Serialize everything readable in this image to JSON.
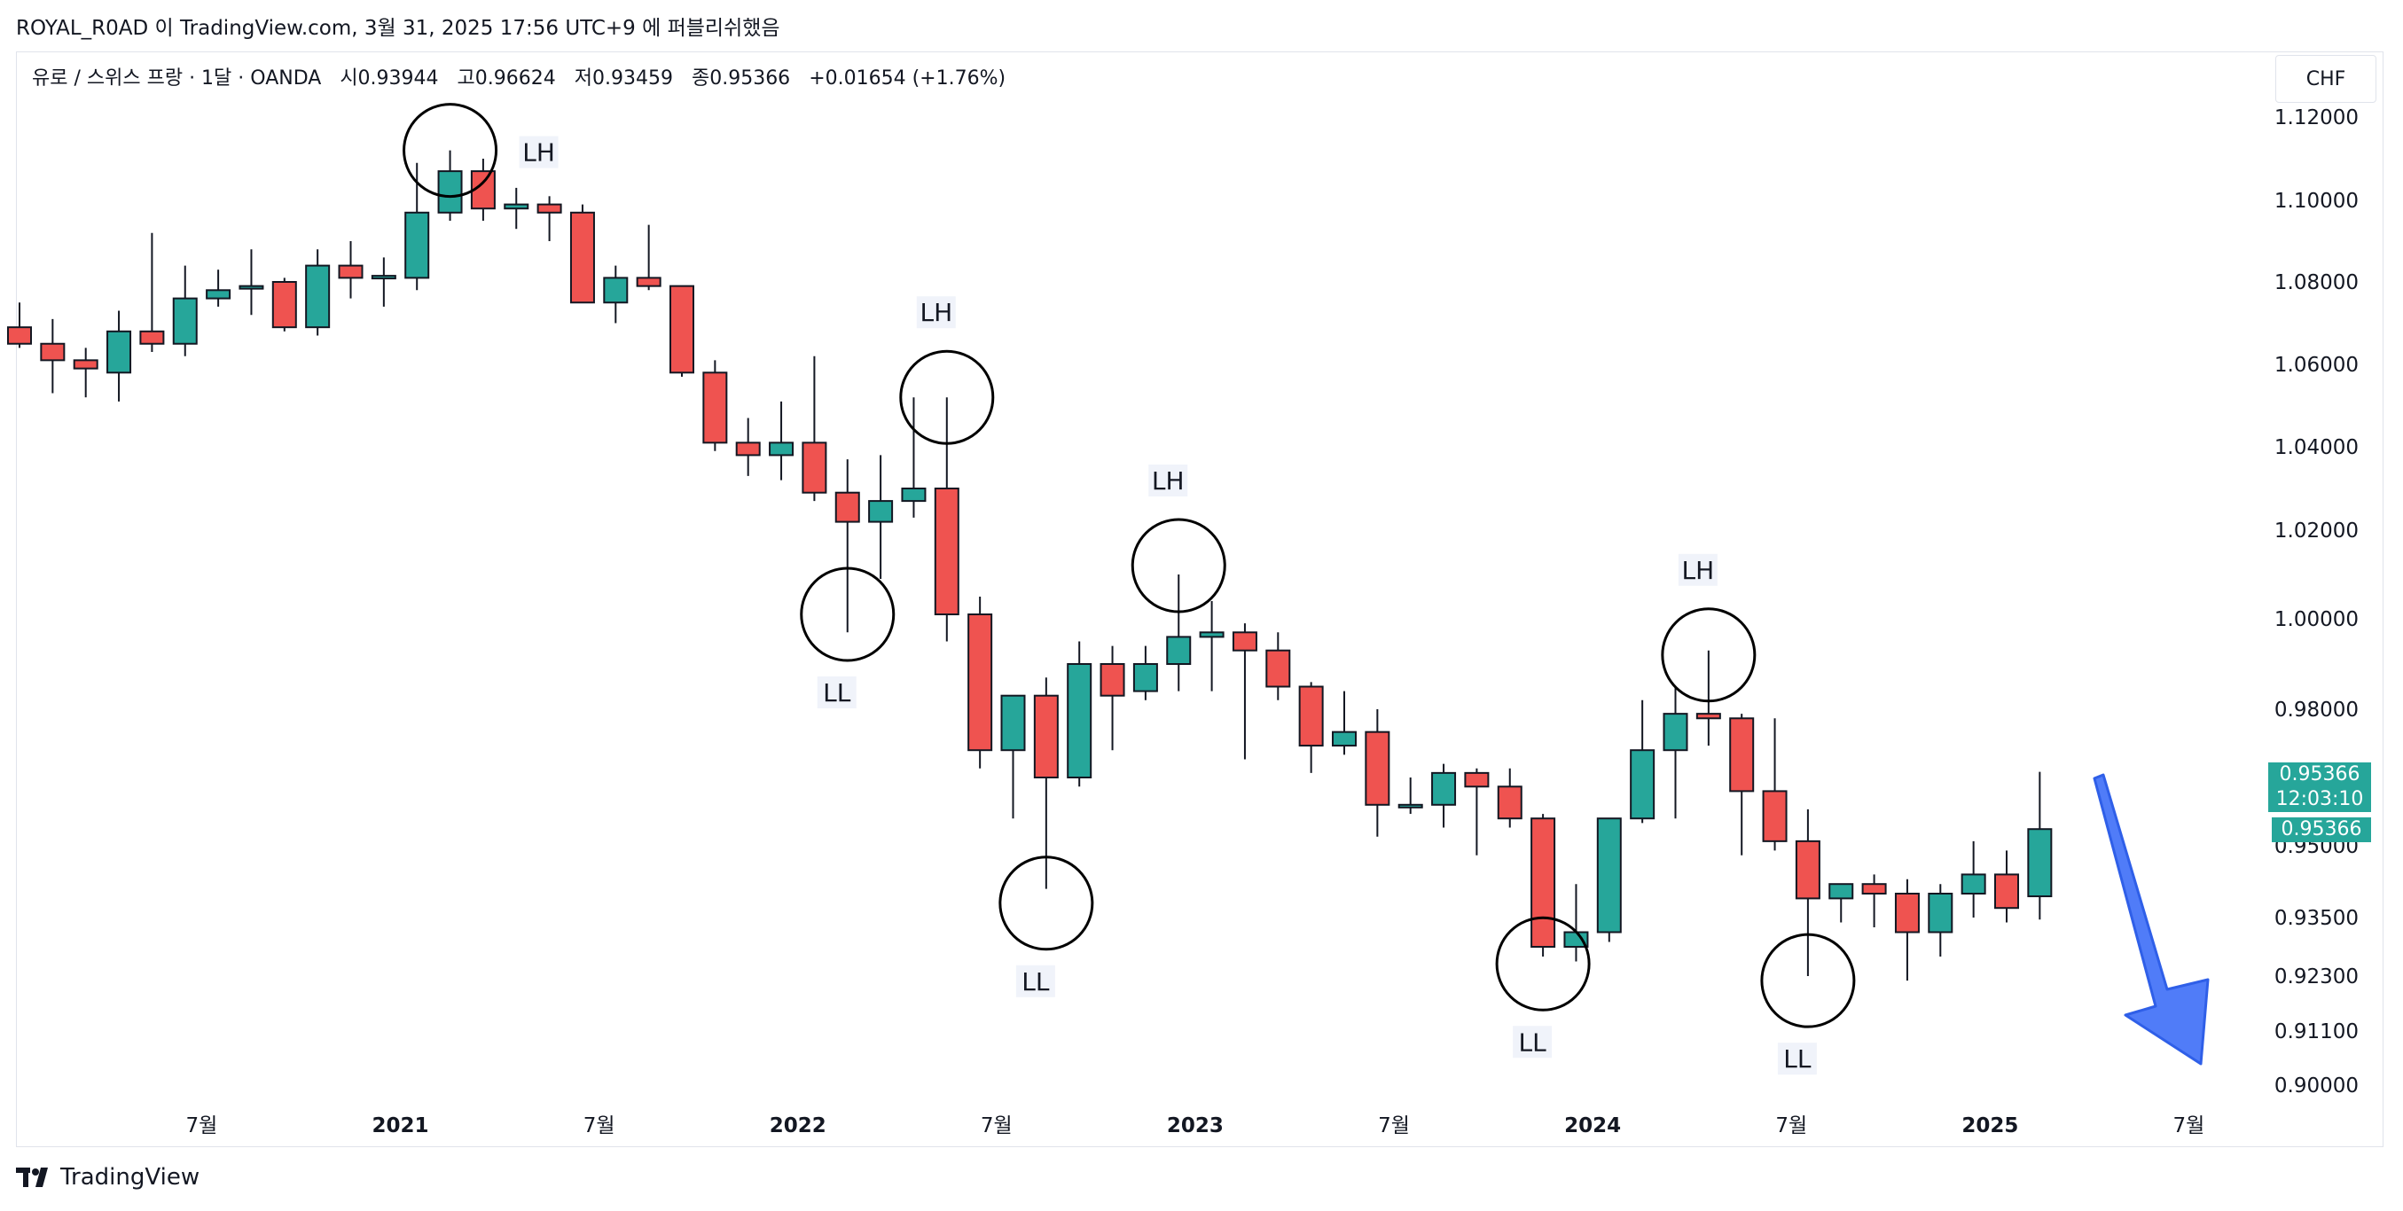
{
  "header": {
    "publisher_line": "ROYAL_R0AD 이 TradingView.com, 3월 31, 2025 17:56 UTC+9 에 퍼블리쉬했음"
  },
  "legend": {
    "symbol": "유로 / 스위스 프랑 · 1달 · OANDA",
    "open": "시0.93944",
    "high": "고0.96624",
    "low": "저0.93459",
    "close": "종0.95366",
    "change": "+0.01654 (+1.76%)"
  },
  "currency": "CHF",
  "price_tags": {
    "last_price": "0.95366",
    "countdown": "12:03:10",
    "close_price": "0.95366"
  },
  "brand": "TradingView",
  "colors": {
    "up": "#26a69a",
    "down": "#ef5350",
    "arrow": "#3d6ef7"
  },
  "chart_data": {
    "type": "candlestick",
    "x_tick_labels": [
      "7월",
      "2021",
      "7월",
      "2022",
      "7월",
      "2023",
      "7월",
      "2024",
      "7월",
      "2025",
      "7월"
    ],
    "x_tick_months": [
      6,
      12,
      18,
      24,
      30,
      36,
      42,
      48,
      54,
      60,
      66
    ],
    "y_tick_labels": [
      "1.12000",
      "1.10000",
      "1.08000",
      "1.06000",
      "1.04000",
      "1.02000",
      "1.00000",
      "0.98000",
      "0.95000",
      "0.93500",
      "0.92300",
      "0.91100",
      "0.90000"
    ],
    "y_ticks": [
      1.12,
      1.1,
      1.08,
      1.06,
      1.04,
      1.02,
      1.0,
      0.98,
      0.95,
      0.935,
      0.923,
      0.911,
      0.9
    ],
    "first_month": "2020-01",
    "candles": [
      {
        "o": 1.069,
        "h": 1.075,
        "l": 1.064,
        "c": 1.065
      },
      {
        "o": 1.065,
        "h": 1.071,
        "l": 1.053,
        "c": 1.061
      },
      {
        "o": 1.061,
        "h": 1.064,
        "l": 1.052,
        "c": 1.059
      },
      {
        "o": 1.058,
        "h": 1.073,
        "l": 1.051,
        "c": 1.068
      },
      {
        "o": 1.068,
        "h": 1.092,
        "l": 1.063,
        "c": 1.065
      },
      {
        "o": 1.065,
        "h": 1.084,
        "l": 1.062,
        "c": 1.076
      },
      {
        "o": 1.076,
        "h": 1.083,
        "l": 1.074,
        "c": 1.078
      },
      {
        "o": 1.0785,
        "h": 1.088,
        "l": 1.072,
        "c": 1.079
      },
      {
        "o": 1.08,
        "h": 1.081,
        "l": 1.068,
        "c": 1.069
      },
      {
        "o": 1.069,
        "h": 1.088,
        "l": 1.067,
        "c": 1.084
      },
      {
        "o": 1.084,
        "h": 1.09,
        "l": 1.076,
        "c": 1.081
      },
      {
        "o": 1.0815,
        "h": 1.086,
        "l": 1.074,
        "c": 1.0815
      },
      {
        "o": 1.081,
        "h": 1.109,
        "l": 1.078,
        "c": 1.097
      },
      {
        "o": 1.097,
        "h": 1.112,
        "l": 1.095,
        "c": 1.107
      },
      {
        "o": 1.107,
        "h": 1.11,
        "l": 1.095,
        "c": 1.098
      },
      {
        "o": 1.098,
        "h": 1.103,
        "l": 1.093,
        "c": 1.099
      },
      {
        "o": 1.099,
        "h": 1.101,
        "l": 1.09,
        "c": 1.097
      },
      {
        "o": 1.097,
        "h": 1.099,
        "l": 1.075,
        "c": 1.075
      },
      {
        "o": 1.075,
        "h": 1.084,
        "l": 1.07,
        "c": 1.081
      },
      {
        "o": 1.081,
        "h": 1.094,
        "l": 1.078,
        "c": 1.079
      },
      {
        "o": 1.079,
        "h": 1.079,
        "l": 1.057,
        "c": 1.058
      },
      {
        "o": 1.058,
        "h": 1.061,
        "l": 1.039,
        "c": 1.041
      },
      {
        "o": 1.041,
        "h": 1.047,
        "l": 1.033,
        "c": 1.038
      },
      {
        "o": 1.038,
        "h": 1.051,
        "l": 1.032,
        "c": 1.041
      },
      {
        "o": 1.041,
        "h": 1.062,
        "l": 1.027,
        "c": 1.029
      },
      {
        "o": 1.029,
        "h": 1.037,
        "l": 0.997,
        "c": 1.022
      },
      {
        "o": 1.022,
        "h": 1.038,
        "l": 1.009,
        "c": 1.027
      },
      {
        "o": 1.027,
        "h": 1.052,
        "l": 1.023,
        "c": 1.03
      },
      {
        "o": 1.03,
        "h": 1.052,
        "l": 0.995,
        "c": 1.001
      },
      {
        "o": 1.001,
        "h": 1.005,
        "l": 0.967,
        "c": 0.971
      },
      {
        "o": 0.971,
        "h": 0.983,
        "l": 0.956,
        "c": 0.983
      },
      {
        "o": 0.983,
        "h": 0.987,
        "l": 0.941,
        "c": 0.965
      },
      {
        "o": 0.965,
        "h": 0.995,
        "l": 0.963,
        "c": 0.99
      },
      {
        "o": 0.99,
        "h": 0.994,
        "l": 0.971,
        "c": 0.983
      },
      {
        "o": 0.984,
        "h": 0.994,
        "l": 0.982,
        "c": 0.99
      },
      {
        "o": 0.99,
        "h": 1.01,
        "l": 0.984,
        "c": 0.996
      },
      {
        "o": 0.996,
        "h": 1.004,
        "l": 0.984,
        "c": 0.997
      },
      {
        "o": 0.997,
        "h": 0.999,
        "l": 0.969,
        "c": 0.993
      },
      {
        "o": 0.993,
        "h": 0.997,
        "l": 0.982,
        "c": 0.985
      },
      {
        "o": 0.985,
        "h": 0.986,
        "l": 0.966,
        "c": 0.972
      },
      {
        "o": 0.972,
        "h": 0.984,
        "l": 0.97,
        "c": 0.975
      },
      {
        "o": 0.975,
        "h": 0.98,
        "l": 0.952,
        "c": 0.959
      },
      {
        "o": 0.959,
        "h": 0.965,
        "l": 0.957,
        "c": 0.959
      },
      {
        "o": 0.959,
        "h": 0.968,
        "l": 0.954,
        "c": 0.966
      },
      {
        "o": 0.966,
        "h": 0.967,
        "l": 0.948,
        "c": 0.963
      },
      {
        "o": 0.963,
        "h": 0.967,
        "l": 0.954,
        "c": 0.956
      },
      {
        "o": 0.956,
        "h": 0.957,
        "l": 0.927,
        "c": 0.929
      },
      {
        "o": 0.929,
        "h": 0.942,
        "l": 0.926,
        "c": 0.932
      },
      {
        "o": 0.932,
        "h": 0.956,
        "l": 0.93,
        "c": 0.956
      },
      {
        "o": 0.956,
        "h": 0.982,
        "l": 0.955,
        "c": 0.971
      },
      {
        "o": 0.971,
        "h": 0.985,
        "l": 0.956,
        "c": 0.979
      },
      {
        "o": 0.979,
        "h": 0.993,
        "l": 0.972,
        "c": 0.978
      },
      {
        "o": 0.978,
        "h": 0.979,
        "l": 0.948,
        "c": 0.962
      },
      {
        "o": 0.962,
        "h": 0.978,
        "l": 0.949,
        "c": 0.951
      },
      {
        "o": 0.951,
        "h": 0.958,
        "l": 0.923,
        "c": 0.939
      },
      {
        "o": 0.939,
        "h": 0.942,
        "l": 0.934,
        "c": 0.942
      },
      {
        "o": 0.942,
        "h": 0.944,
        "l": 0.933,
        "c": 0.94
      },
      {
        "o": 0.94,
        "h": 0.943,
        "l": 0.922,
        "c": 0.932
      },
      {
        "o": 0.932,
        "h": 0.942,
        "l": 0.927,
        "c": 0.94
      },
      {
        "o": 0.94,
        "h": 0.951,
        "l": 0.935,
        "c": 0.944
      },
      {
        "o": 0.944,
        "h": 0.949,
        "l": 0.934,
        "c": 0.937
      },
      {
        "o": 0.93944,
        "h": 0.96624,
        "l": 0.93459,
        "c": 0.95366
      }
    ],
    "annotations": [
      {
        "label": "LH",
        "month": 13,
        "price": 1.112
      },
      {
        "label": "LL",
        "month": 25,
        "price": 1.001
      },
      {
        "label": "LH",
        "month": 28,
        "price": 1.052
      },
      {
        "label": "LL",
        "month": 31,
        "price": 0.938
      },
      {
        "label": "LH",
        "month": 35,
        "price": 1.012
      },
      {
        "label": "LL",
        "month": 46,
        "price": 0.9255
      },
      {
        "label": "LH",
        "month": 51,
        "price": 0.992
      },
      {
        "label": "LL",
        "month": 54,
        "price": 0.922
      }
    ],
    "grid": false
  }
}
